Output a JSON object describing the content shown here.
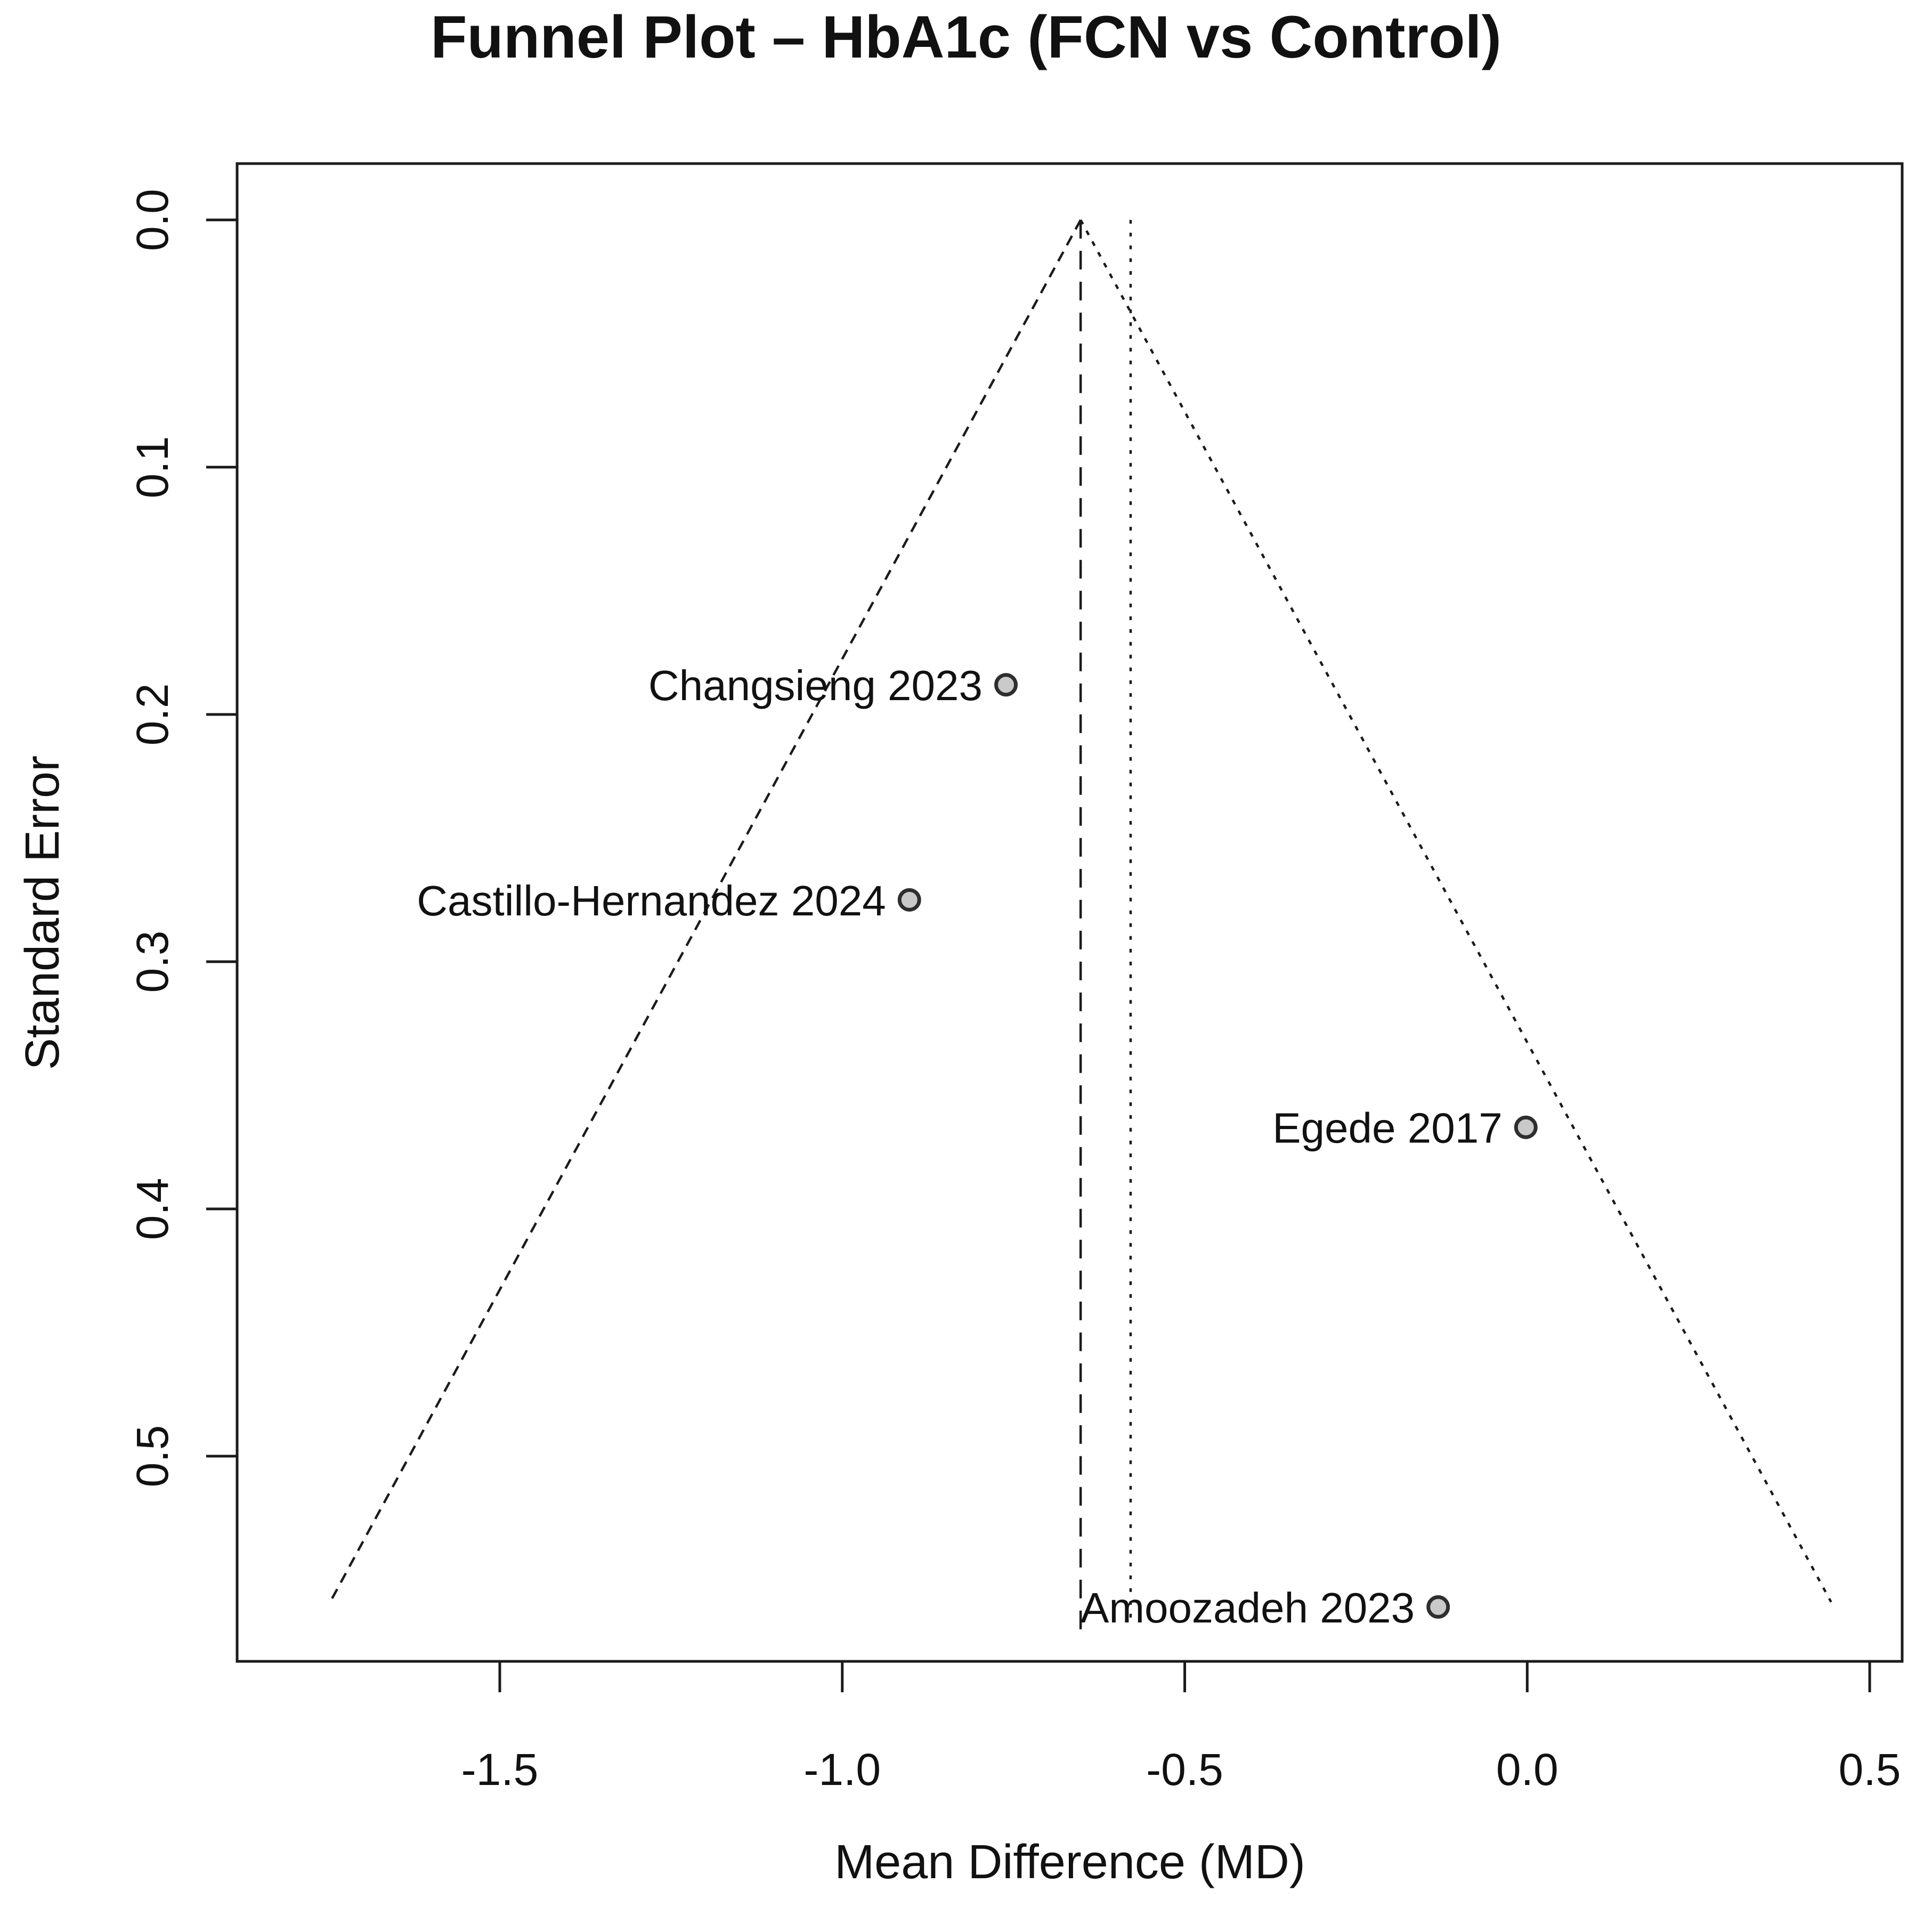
{
  "title": "Funnel Plot – HbA1c (FCN vs Control)",
  "colors": {
    "line": "#1b1b1b",
    "text": "#111111",
    "marker_fill": "#c9c9c9",
    "marker_stroke": "#2e2e2e",
    "background": "#ffffff"
  },
  "chart_data": {
    "type": "scatter",
    "title": "Funnel Plot – HbA1c (FCN vs Control)",
    "xlabel": "Mean Difference (MD)",
    "ylabel": "Standard Error",
    "x_axis": {
      "ticks": [
        -1.5,
        -1.0,
        -0.5,
        0.0,
        0.5
      ],
      "tick_labels": [
        "-1.5",
        "-1.0",
        "-0.5",
        "0.0",
        "0.5"
      ],
      "xlim": [
        -1.8835,
        0.5474
      ]
    },
    "y_axis": {
      "ticks": [
        0.0,
        0.1,
        0.2,
        0.3,
        0.4,
        0.5
      ],
      "tick_labels": [
        "0.0",
        "0.1",
        "0.2",
        "0.3",
        "0.4",
        "0.5"
      ],
      "ylim": [
        -0.0228,
        0.583
      ],
      "inverted": true
    },
    "grid": false,
    "legend": false,
    "points": [
      {
        "label": "Changsieng 2023",
        "md": -0.761,
        "se": 0.188
      },
      {
        "label": "Castillo-Hernandez 2024",
        "md": -0.902,
        "se": 0.275
      },
      {
        "label": "Egede 2017",
        "md": -0.002,
        "se": 0.367
      },
      {
        "label": "Amoozadeh 2023",
        "md": -0.13,
        "se": 0.561
      }
    ],
    "funnel": {
      "apex_md": -0.652,
      "apex_se": 0.0,
      "se_max": 0.559,
      "z": 1.96,
      "left_edge_style": "dashed",
      "right_edge_style": "dotted"
    },
    "reference_lines": [
      {
        "name": "pooled-estimate-line",
        "style": "long-dashed",
        "md": -0.652,
        "se_from": 0.0,
        "se_to": 0.571
      },
      {
        "name": "secondary-line",
        "style": "dotted",
        "md": -0.579,
        "se_from": 0.0,
        "se_to": 0.568
      }
    ]
  }
}
